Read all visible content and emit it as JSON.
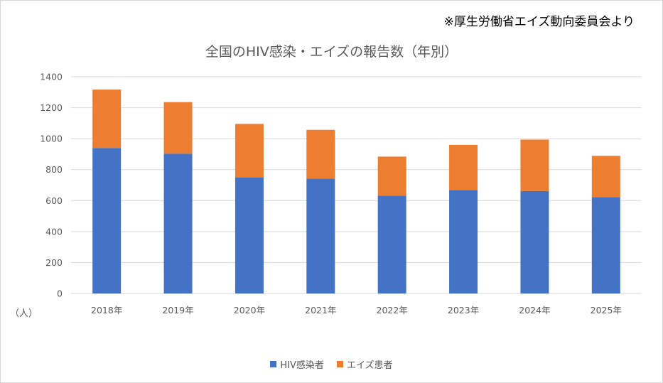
{
  "source_note": "※厚生労働省エイズ動向委員会より",
  "unit_label": "（人）",
  "colors": {
    "hiv": "#4472C4",
    "aids": "#ED7D31",
    "grid": "#d9d9d9",
    "text": "#595959"
  },
  "chart_data": {
    "type": "bar",
    "stacked": true,
    "title": "全国のHIV感染・エイズの報告数（年別）",
    "xlabel": "",
    "ylabel": "（人）",
    "categories": [
      "2018年",
      "2019年",
      "2020年",
      "2021年",
      "2022年",
      "2023年",
      "2024年",
      "2025年"
    ],
    "series": [
      {
        "name": "HIV感染者",
        "values": [
          940,
          903,
          750,
          742,
          632,
          669,
          662,
          623
        ]
      },
      {
        "name": "エイズ患者",
        "values": [
          377,
          333,
          345,
          315,
          252,
          291,
          332,
          266
        ]
      }
    ],
    "ylim": [
      0,
      1400
    ],
    "yticks": [
      0,
      200,
      400,
      600,
      800,
      1000,
      1200,
      1400
    ],
    "grid": true,
    "legend_position": "bottom"
  }
}
